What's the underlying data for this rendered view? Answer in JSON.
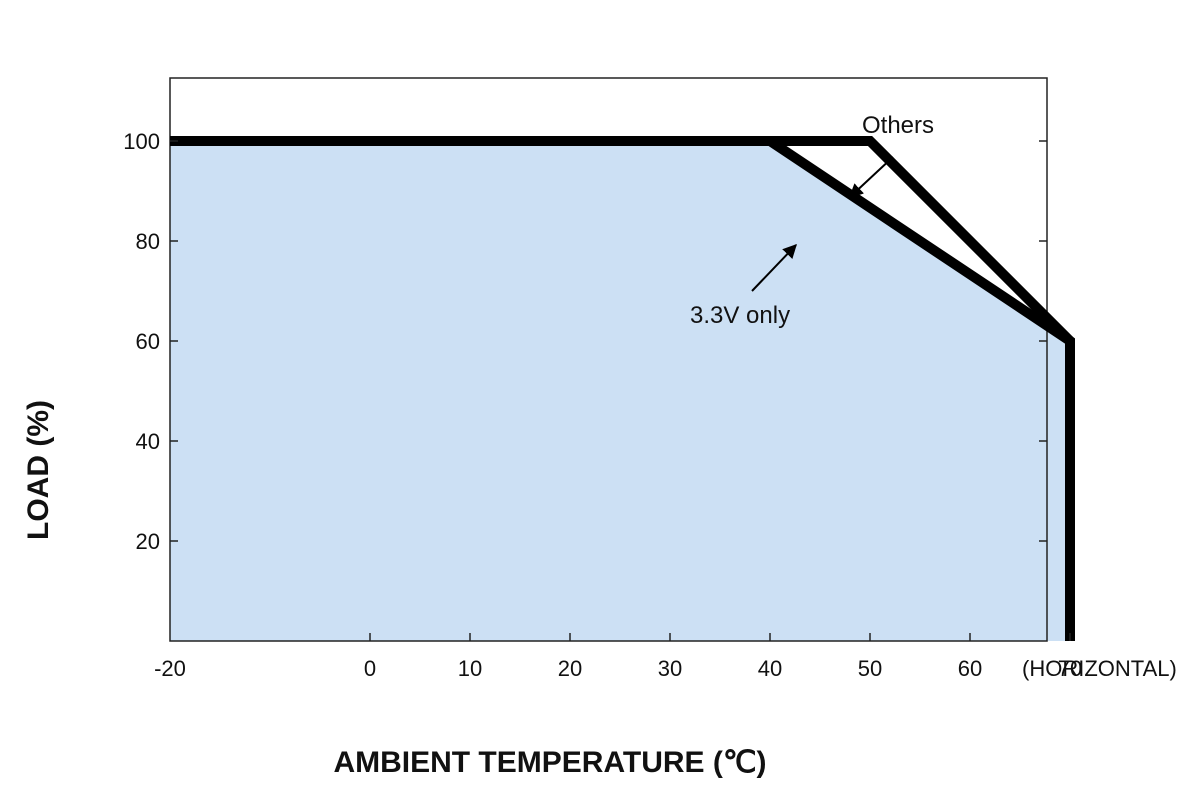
{
  "chart_data": {
    "type": "area",
    "title": "",
    "xlabel": "AMBIENT TEMPERATURE (℃)",
    "ylabel": "LOAD (%)",
    "x_unit_note": "(HORIZONTAL)",
    "xlim": [
      -20,
      67.5
    ],
    "ylim": [
      0,
      112.5
    ],
    "x_ticks": [
      -20,
      0,
      10,
      20,
      30,
      40,
      50,
      60,
      70
    ],
    "y_ticks": [
      20,
      40,
      60,
      80,
      100
    ],
    "grid": false,
    "fill_color": "#cce0f4",
    "line_color": "#000000",
    "series": [
      {
        "name": "Others",
        "x": [
          -20,
          50,
          70,
          70
        ],
        "y": [
          100,
          100,
          60,
          0
        ]
      },
      {
        "name": "3.3V only",
        "x": [
          -20,
          40,
          70,
          70
        ],
        "y": [
          100,
          100,
          60,
          0
        ]
      }
    ],
    "annotations": [
      {
        "text": "Others",
        "series": "Others"
      },
      {
        "text": "3.3V only",
        "series": "3.3V only"
      }
    ]
  }
}
